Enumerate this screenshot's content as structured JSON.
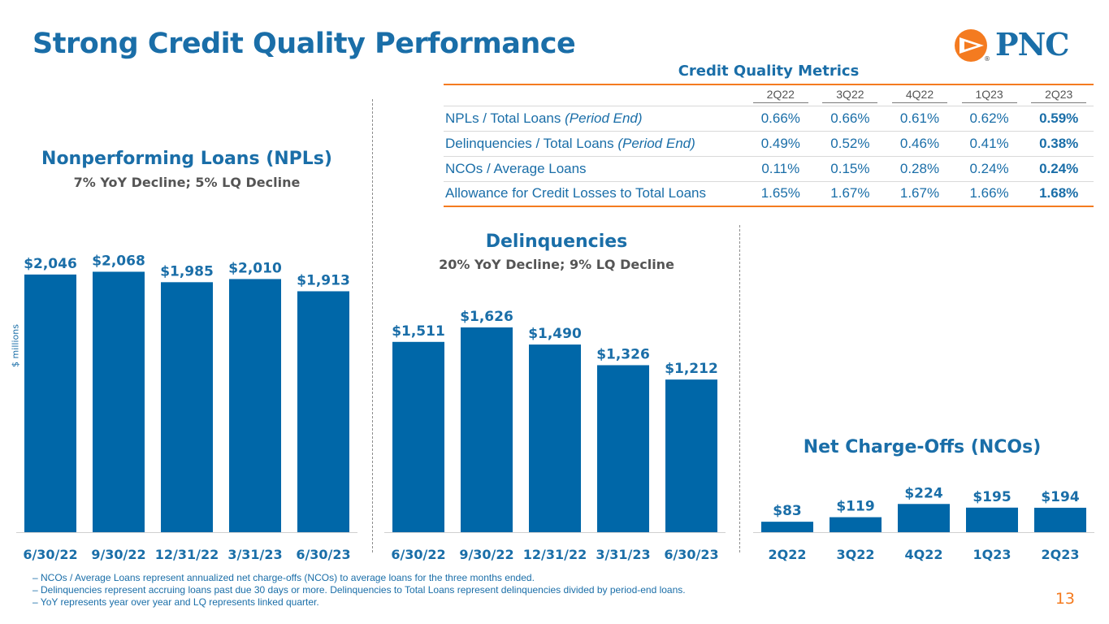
{
  "title": "Strong Credit Quality Performance",
  "logo": {
    "text": "PNC",
    "registered": "®"
  },
  "colors": {
    "bar": "#0067a8",
    "accent": "#f47b20",
    "blue": "#1a6ea8"
  },
  "table": {
    "title": "Credit Quality Metrics",
    "columns": [
      "2Q22",
      "3Q22",
      "4Q22",
      "1Q23",
      "2Q23"
    ],
    "rows": [
      {
        "label": "NPLs / Total Loans ",
        "label_em": "(Period End)",
        "values": [
          "0.66%",
          "0.66%",
          "0.61%",
          "0.62%",
          "0.59%"
        ]
      },
      {
        "label": "Delinquencies / Total Loans ",
        "label_em": "(Period End)",
        "values": [
          "0.49%",
          "0.52%",
          "0.46%",
          "0.41%",
          "0.38%"
        ]
      },
      {
        "label": "NCOs / Average Loans",
        "label_em": "",
        "values": [
          "0.11%",
          "0.15%",
          "0.28%",
          "0.24%",
          "0.24%"
        ]
      },
      {
        "label": "Allowance for Credit Losses to Total Loans",
        "label_em": "",
        "values": [
          "1.65%",
          "1.67%",
          "1.67%",
          "1.66%",
          "1.68%"
        ]
      }
    ]
  },
  "y_axis_label": "$ millions",
  "chart_data": [
    {
      "type": "bar",
      "title": "Nonperforming Loans (NPLs)",
      "subtitle": "7% YoY Decline; 5% LQ Decline",
      "categories": [
        "6/30/22",
        "9/30/22",
        "12/31/22",
        "3/31/23",
        "6/30/23"
      ],
      "values": [
        2046,
        2068,
        1985,
        2010,
        1913
      ],
      "labels": [
        "$2,046",
        "$2,068",
        "$1,985",
        "$2,010",
        "$1,913"
      ],
      "ylabel": "$ millions"
    },
    {
      "type": "bar",
      "title": "Delinquencies",
      "subtitle": "20% YoY Decline; 9% LQ Decline",
      "categories": [
        "6/30/22",
        "9/30/22",
        "12/31/22",
        "3/31/23",
        "6/30/23"
      ],
      "values": [
        1511,
        1626,
        1490,
        1326,
        1212
      ],
      "labels": [
        "$1,511",
        "$1,626",
        "$1,490",
        "$1,326",
        "$1,212"
      ]
    },
    {
      "type": "bar",
      "title": "Net Charge-Offs (NCOs)",
      "subtitle": "",
      "categories": [
        "2Q22",
        "3Q22",
        "4Q22",
        "1Q23",
        "2Q23"
      ],
      "values": [
        83,
        119,
        224,
        195,
        194
      ],
      "labels": [
        "$83",
        "$119",
        "$224",
        "$195",
        "$194"
      ]
    }
  ],
  "footnotes": [
    "– NCOs / Average Loans represent annualized net charge-offs (NCOs) to average loans for the three months ended.",
    "– Delinquencies represent accruing loans past due 30 days or more. Delinquencies to Total Loans represent delinquencies divided by period-end loans.",
    "– YoY represents year over year and LQ represents linked quarter."
  ],
  "page_number": "13"
}
